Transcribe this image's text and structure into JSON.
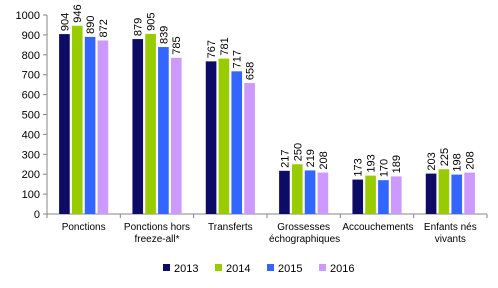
{
  "chart_data": {
    "type": "bar",
    "categories": [
      "Ponctions",
      "Ponctions hors freeze-all*",
      "Transferts",
      "Grossesses échographiques",
      "Accouchements",
      "Enfants nés vivants"
    ],
    "series": [
      {
        "name": "2013",
        "color": "#0c0c66",
        "values": [
          904,
          879,
          767,
          217,
          173,
          203
        ]
      },
      {
        "name": "2014",
        "color": "#99cc00",
        "values": [
          946,
          905,
          781,
          250,
          193,
          225
        ]
      },
      {
        "name": "2015",
        "color": "#3366ff",
        "values": [
          890,
          839,
          717,
          219,
          170,
          198
        ]
      },
      {
        "name": "2016",
        "color": "#cc99ff",
        "values": [
          872,
          785,
          658,
          208,
          189,
          208
        ]
      }
    ],
    "ylim": [
      0,
      1000
    ],
    "yticks": [
      0,
      100,
      200,
      300,
      400,
      500,
      600,
      700,
      800,
      900,
      1000
    ],
    "grid": false,
    "legend": "bottom"
  }
}
